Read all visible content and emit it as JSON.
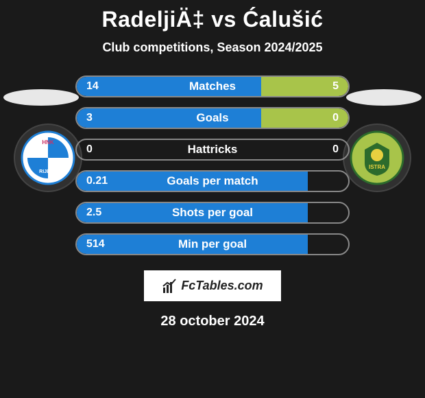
{
  "title": "RadeljiÄ‡ vs Ćalušić",
  "subtitle": "Club competitions, Season 2024/2025",
  "date": "28 october 2024",
  "logo_text": "FcTables.com",
  "colors": {
    "left_fill": "#1e7fd6",
    "right_fill": "#a8c44a",
    "neutral": "#303030",
    "ellipse": "#e8e8e8",
    "border": "#888888",
    "bg": "#1a1a1a"
  },
  "badges": {
    "left": {
      "bg": "#ffffff",
      "accent": "#1e7fd6",
      "text": "HNK RIJEKA"
    },
    "right": {
      "bg": "#a8c44a",
      "accent": "#2c6b2c",
      "text": "ISTRA"
    }
  },
  "rows": [
    {
      "label": "Matches",
      "left_val": "14",
      "right_val": "5",
      "left_pct": 68,
      "right_pct": 32
    },
    {
      "label": "Goals",
      "left_val": "3",
      "right_val": "0",
      "left_pct": 68,
      "right_pct": 32
    },
    {
      "label": "Hattricks",
      "left_val": "0",
      "right_val": "0",
      "left_pct": 0,
      "right_pct": 0
    },
    {
      "label": "Goals per match",
      "left_val": "0.21",
      "right_val": "",
      "left_pct": 85,
      "right_pct": 0
    },
    {
      "label": "Shots per goal",
      "left_val": "2.5",
      "right_val": "",
      "left_pct": 85,
      "right_pct": 0
    },
    {
      "label": "Min per goal",
      "left_val": "514",
      "right_val": "",
      "left_pct": 85,
      "right_pct": 0
    }
  ]
}
